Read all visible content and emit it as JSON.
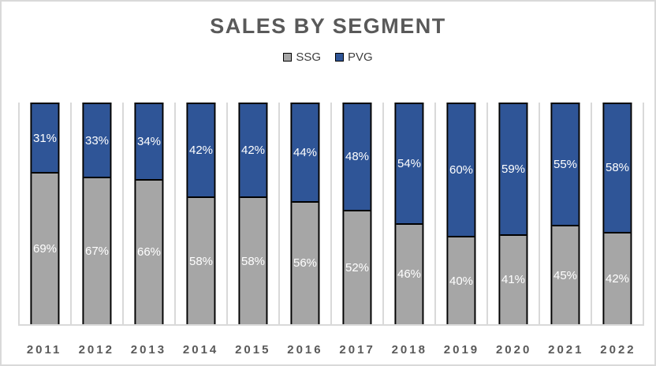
{
  "title": "SALES BY SEGMENT",
  "legend": [
    {
      "label": "SSG",
      "color": "#a6a6a6"
    },
    {
      "label": "PVG",
      "color": "#2f5597"
    }
  ],
  "chart_data": {
    "type": "bar",
    "stacked": true,
    "title": "SALES BY SEGMENT",
    "xlabel": "",
    "ylabel": "",
    "ylim": [
      0,
      100
    ],
    "value_suffix": "%",
    "legend_position": "top",
    "grid": "vertical category-boundary gridlines, light gray",
    "categories": [
      "2011",
      "2012",
      "2013",
      "2014",
      "2015",
      "2016",
      "2017",
      "2018",
      "2019",
      "2020",
      "2021",
      "2022"
    ],
    "series": [
      {
        "name": "SSG",
        "color": "#a6a6a6",
        "values": [
          69,
          67,
          66,
          58,
          58,
          56,
          52,
          46,
          40,
          41,
          45,
          42
        ]
      },
      {
        "name": "PVG",
        "color": "#2f5597",
        "values": [
          31,
          33,
          34,
          42,
          42,
          44,
          48,
          54,
          60,
          59,
          55,
          58
        ]
      }
    ],
    "colors": {
      "bar_border": "#000000",
      "gridline": "#d9d9d9",
      "title_text": "#595959",
      "axis_text": "#595959",
      "data_label_text": "#ffffff",
      "chart_border": "#d9d9d9",
      "background": "#ffffff"
    }
  }
}
